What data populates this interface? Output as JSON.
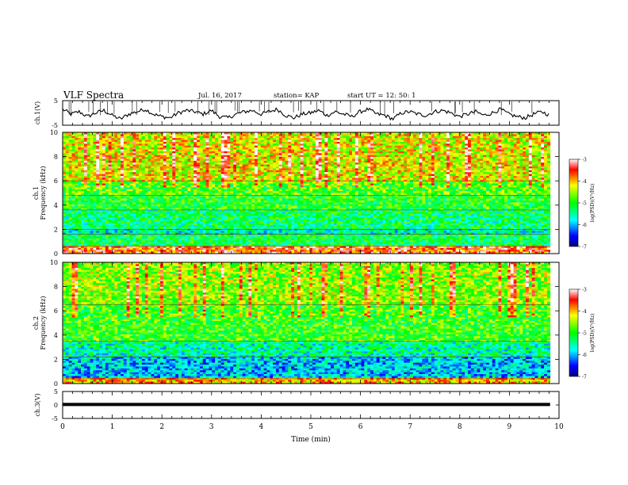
{
  "header": {
    "title": "VLF Spectra",
    "date": "Jul. 16, 2017",
    "station": "station= KAP",
    "start": "start UT = 12: 50: 1"
  },
  "chart_data": [
    {
      "type": "line",
      "panel": "ch1-waveform",
      "ylabel": "ch.1(V)",
      "ylim": [
        -5,
        5
      ],
      "yticks": [
        "5",
        "-5"
      ],
      "series": [
        {
          "values": [
            1.5,
            -0.5,
            0.5,
            -1.5,
            0.0,
            1.0,
            -1.0,
            -2.5,
            -0.5,
            0.5,
            1.5,
            -0.5,
            -1.5,
            -2.0,
            0.0,
            1.0,
            0.5,
            -0.5,
            1.0,
            -1.5,
            -2.0,
            -0.5,
            0.5,
            1.0,
            -0.5,
            0.5,
            1.5,
            -1.0,
            -2.0,
            -0.5,
            0.0,
            1.0,
            -1.0,
            0.5,
            -0.5,
            -1.5,
            0.5,
            1.5,
            -0.5,
            -1.0,
            -2.5,
            0.0,
            0.5,
            -0.5,
            -1.0,
            0.5,
            1.0,
            0.0,
            -1.5,
            -0.5,
            0.5,
            -1.0,
            0.0,
            1.5,
            -0.5,
            -1.5,
            -2.0,
            -0.5,
            0.5,
            -1.0
          ]
        }
      ]
    },
    {
      "type": "heatmap",
      "panel": "ch1-spectrogram",
      "ylabel": "ch.1\nFrequency (kHz)",
      "xlim": [
        0,
        10
      ],
      "ylim": [
        0,
        10
      ],
      "yticks": [
        "0",
        "2",
        "4",
        "6",
        "8",
        "10"
      ],
      "colorbar": {
        "label": "log(PSD)(V²/Hz)",
        "range": [
          -7,
          -3
        ],
        "ticks": [
          "-3",
          "-4",
          "-5",
          "-6",
          "-7"
        ]
      },
      "bands_khz": [
        {
          "from": 0.0,
          "to": 0.6,
          "level": -3.6
        },
        {
          "from": 0.6,
          "to": 1.6,
          "level": -5.2
        },
        {
          "from": 1.6,
          "to": 2.0,
          "level": -5.6
        },
        {
          "from": 2.0,
          "to": 3.6,
          "level": -5.3
        },
        {
          "from": 3.6,
          "to": 4.8,
          "level": -5.0
        },
        {
          "from": 4.8,
          "to": 6.0,
          "level": -4.8
        },
        {
          "from": 6.0,
          "to": 10.0,
          "level": -4.3
        }
      ]
    },
    {
      "type": "heatmap",
      "panel": "ch2-spectrogram",
      "ylabel": "ch.2\nFrequency (kHz)",
      "xlim": [
        0,
        10
      ],
      "ylim": [
        0,
        10
      ],
      "yticks": [
        "0",
        "2",
        "4",
        "6",
        "8",
        "10"
      ],
      "colorbar": {
        "label": "log(PSD)(V²/Hz)",
        "range": [
          -7,
          -3
        ],
        "ticks": [
          "-3",
          "-4",
          "-5",
          "-6",
          "-7"
        ]
      },
      "bands_khz": [
        {
          "from": 0.0,
          "to": 0.4,
          "level": -4.0
        },
        {
          "from": 0.4,
          "to": 2.2,
          "level": -5.9
        },
        {
          "from": 2.2,
          "to": 3.5,
          "level": -5.5
        },
        {
          "from": 3.5,
          "to": 6.5,
          "level": -4.9
        },
        {
          "from": 6.5,
          "to": 10.0,
          "level": -4.6
        }
      ]
    },
    {
      "type": "line",
      "panel": "ch3-waveform",
      "ylabel": "ch.3(V)",
      "ylim": [
        -5,
        5
      ],
      "yticks": [
        "5",
        "0",
        "-5"
      ],
      "series": [
        {
          "values": [
            0.2,
            0.2
          ]
        }
      ]
    }
  ],
  "x_axis": {
    "label": "Time (min)",
    "range": [
      0,
      10
    ],
    "ticks": [
      "0",
      "1",
      "2",
      "3",
      "4",
      "5",
      "6",
      "7",
      "8",
      "9",
      "10"
    ],
    "data_end_min": 9.82
  }
}
